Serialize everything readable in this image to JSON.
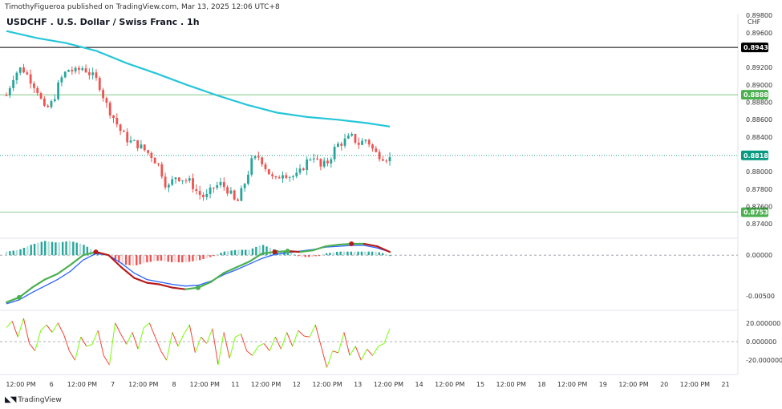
{
  "header": {
    "publisher": "TimothyFigueroa published on TradingView.com, Mar 13, 2025 12:06 UTC+8",
    "title": "USDCHF . U.S. Dollar / Swiss Franc . 1h",
    "currency": "CHF"
  },
  "footer": {
    "brand": "TradingView",
    "logo": "tradingview-logo-icon"
  },
  "colors": {
    "up": "#26a69a",
    "down": "#ef5350",
    "ma": "#26c6da",
    "hline_black": "#000000",
    "hline_green": "#4caf50",
    "price": "#089981",
    "macd_fast": "#4caf50",
    "macd_fast_down": "#b71c1c",
    "macd_slow": "#2962ff",
    "osc_up": "#76ff03",
    "osc_down": "#f44336"
  },
  "chart_data": [
    {
      "type": "candlestick",
      "name": "price",
      "ylim": [
        0.873,
        0.897
      ],
      "yticks": [
        "0.89800",
        "0.89600",
        "0.89200",
        "0.89000",
        "0.88800",
        "0.88600",
        "0.88400",
        "0.88000",
        "0.87800",
        "0.87600",
        "0.87400"
      ],
      "ytick_values": [
        0.898,
        0.896,
        0.892,
        0.89,
        0.888,
        0.886,
        0.884,
        0.88,
        0.878,
        0.876,
        0.874
      ],
      "path": [
        0.8888,
        0.8912,
        0.892,
        0.8908,
        0.8895,
        0.887,
        0.888,
        0.8905,
        0.8918,
        0.8915,
        0.892,
        0.8912,
        0.8903,
        0.8878,
        0.8862,
        0.8845,
        0.8835,
        0.8832,
        0.8825,
        0.8818,
        0.8805,
        0.878,
        0.8795,
        0.8792,
        0.8788,
        0.8775,
        0.877,
        0.8782,
        0.8786,
        0.8778,
        0.8762,
        0.8785,
        0.8812,
        0.8818,
        0.8802,
        0.8788,
        0.88,
        0.8795,
        0.8795,
        0.881,
        0.882,
        0.8805,
        0.8812,
        0.883,
        0.8835,
        0.884,
        0.8832,
        0.8838,
        0.8822,
        0.8818,
        0.8815
      ],
      "ma": {
        "x": [
          0,
          4,
          8,
          12,
          16,
          20,
          24,
          28,
          32,
          36,
          40,
          44,
          48,
          51
        ],
        "y": [
          0.8962,
          0.8954,
          0.8948,
          0.8939,
          0.8925,
          0.8913,
          0.89,
          0.8888,
          0.8877,
          0.8868,
          0.8863,
          0.886,
          0.8856,
          0.8852
        ]
      },
      "hlines": [
        {
          "value": 0.89431,
          "label": "0.89431",
          "color": "hline_black"
        },
        {
          "value": 0.88886,
          "label": "0.88886",
          "color": "hline_green"
        },
        {
          "value": 0.88188,
          "label": "0.88188",
          "color": "price",
          "dotted": true
        },
        {
          "value": 0.87534,
          "label": "0.87534",
          "color": "hline_green"
        }
      ]
    },
    {
      "type": "line",
      "name": "macd",
      "ylim": [
        -0.0065,
        0.0016
      ],
      "yticks": [
        "0.00000",
        "-0.00500"
      ],
      "ytick_values": [
        0.0,
        -0.005
      ],
      "fast": [
        -0.0058,
        -0.0052,
        -0.004,
        -0.003,
        -0.0023,
        -0.0012,
        0.0,
        0.0004,
        0.0,
        -0.0015,
        -0.0028,
        -0.0034,
        -0.0036,
        -0.004,
        -0.0042,
        -0.004,
        -0.0033,
        -0.0022,
        -0.0015,
        -0.0008,
        0.0002,
        0.0004,
        0.0005,
        0.0004,
        0.0006,
        0.0011,
        0.0013,
        0.0014,
        0.0014,
        0.0011,
        0.0004
      ],
      "slow": [
        -0.006,
        -0.0055,
        -0.0046,
        -0.0038,
        -0.003,
        -0.002,
        -0.0006,
        0.0002,
        0.0,
        -0.001,
        -0.0022,
        -0.003,
        -0.0033,
        -0.0036,
        -0.0038,
        -0.0037,
        -0.0032,
        -0.0024,
        -0.0018,
        -0.0011,
        -0.0004,
        0.0001,
        0.0003,
        0.0005,
        0.0007,
        0.001,
        0.0011,
        0.0012,
        0.0012,
        0.0009,
        0.0004
      ],
      "markers": [
        {
          "i": 1,
          "color": "macd_fast"
        },
        {
          "i": 7,
          "color": "macd_fast_down"
        },
        {
          "i": 15,
          "color": "macd_fast"
        },
        {
          "i": 21,
          "color": "macd_fast_down"
        },
        {
          "i": 22,
          "color": "macd_fast"
        },
        {
          "i": 27,
          "color": "macd_fast_down"
        }
      ]
    },
    {
      "type": "line",
      "name": "oscillator",
      "ylim": [
        -31,
        31
      ],
      "yticks": [
        "20.000000",
        "0.000000",
        "-20.000000"
      ],
      "ytick_values": [
        20,
        0,
        -20
      ],
      "values": [
        15,
        22,
        5,
        25,
        -2,
        -10,
        12,
        18,
        10,
        20,
        8,
        -10,
        -20,
        5,
        -5,
        -3,
        12,
        -15,
        -25,
        20,
        8,
        -3,
        10,
        -8,
        15,
        20,
        5,
        -10,
        -20,
        10,
        -5,
        8,
        18,
        -12,
        5,
        -2,
        14,
        -25,
        10,
        -18,
        5,
        8,
        -10,
        -15,
        -5,
        -2,
        -10,
        5,
        -8,
        10,
        -5,
        12,
        6,
        5,
        18,
        -5,
        -28,
        -10,
        -12,
        10,
        -15,
        -5,
        -20,
        -8,
        -15,
        -5,
        -2,
        14
      ],
      "zero": 0
    }
  ],
  "xaxis": {
    "labels": [
      {
        "i": 0,
        "t": "12:00 PM"
      },
      {
        "i": 1,
        "t": "6"
      },
      {
        "i": 2,
        "t": "12:00 PM"
      },
      {
        "i": 3,
        "t": "7"
      },
      {
        "i": 4,
        "t": "12:00 PM"
      },
      {
        "i": 5,
        "t": "8"
      },
      {
        "i": 6,
        "t": "12:00 PM"
      },
      {
        "i": 7,
        "t": "11"
      },
      {
        "i": 8,
        "t": "12:00 PM"
      },
      {
        "i": 9,
        "t": "12"
      },
      {
        "i": 10,
        "t": "12:00 PM"
      },
      {
        "i": 11,
        "t": "13"
      },
      {
        "i": 12,
        "t": "12:00 PM"
      },
      {
        "i": 13,
        "t": "14"
      },
      {
        "i": 14,
        "t": "12:00 PM"
      },
      {
        "i": 15,
        "t": "15"
      },
      {
        "i": 16,
        "t": "12:00 PM"
      },
      {
        "i": 17,
        "t": "18"
      },
      {
        "i": 18,
        "t": "12:00 PM"
      },
      {
        "i": 19,
        "t": "19"
      },
      {
        "i": 20,
        "t": "12:00 PM"
      },
      {
        "i": 21,
        "t": "20"
      },
      {
        "i": 22,
        "t": "12:00 PM"
      },
      {
        "i": 23,
        "t": "21"
      }
    ]
  }
}
